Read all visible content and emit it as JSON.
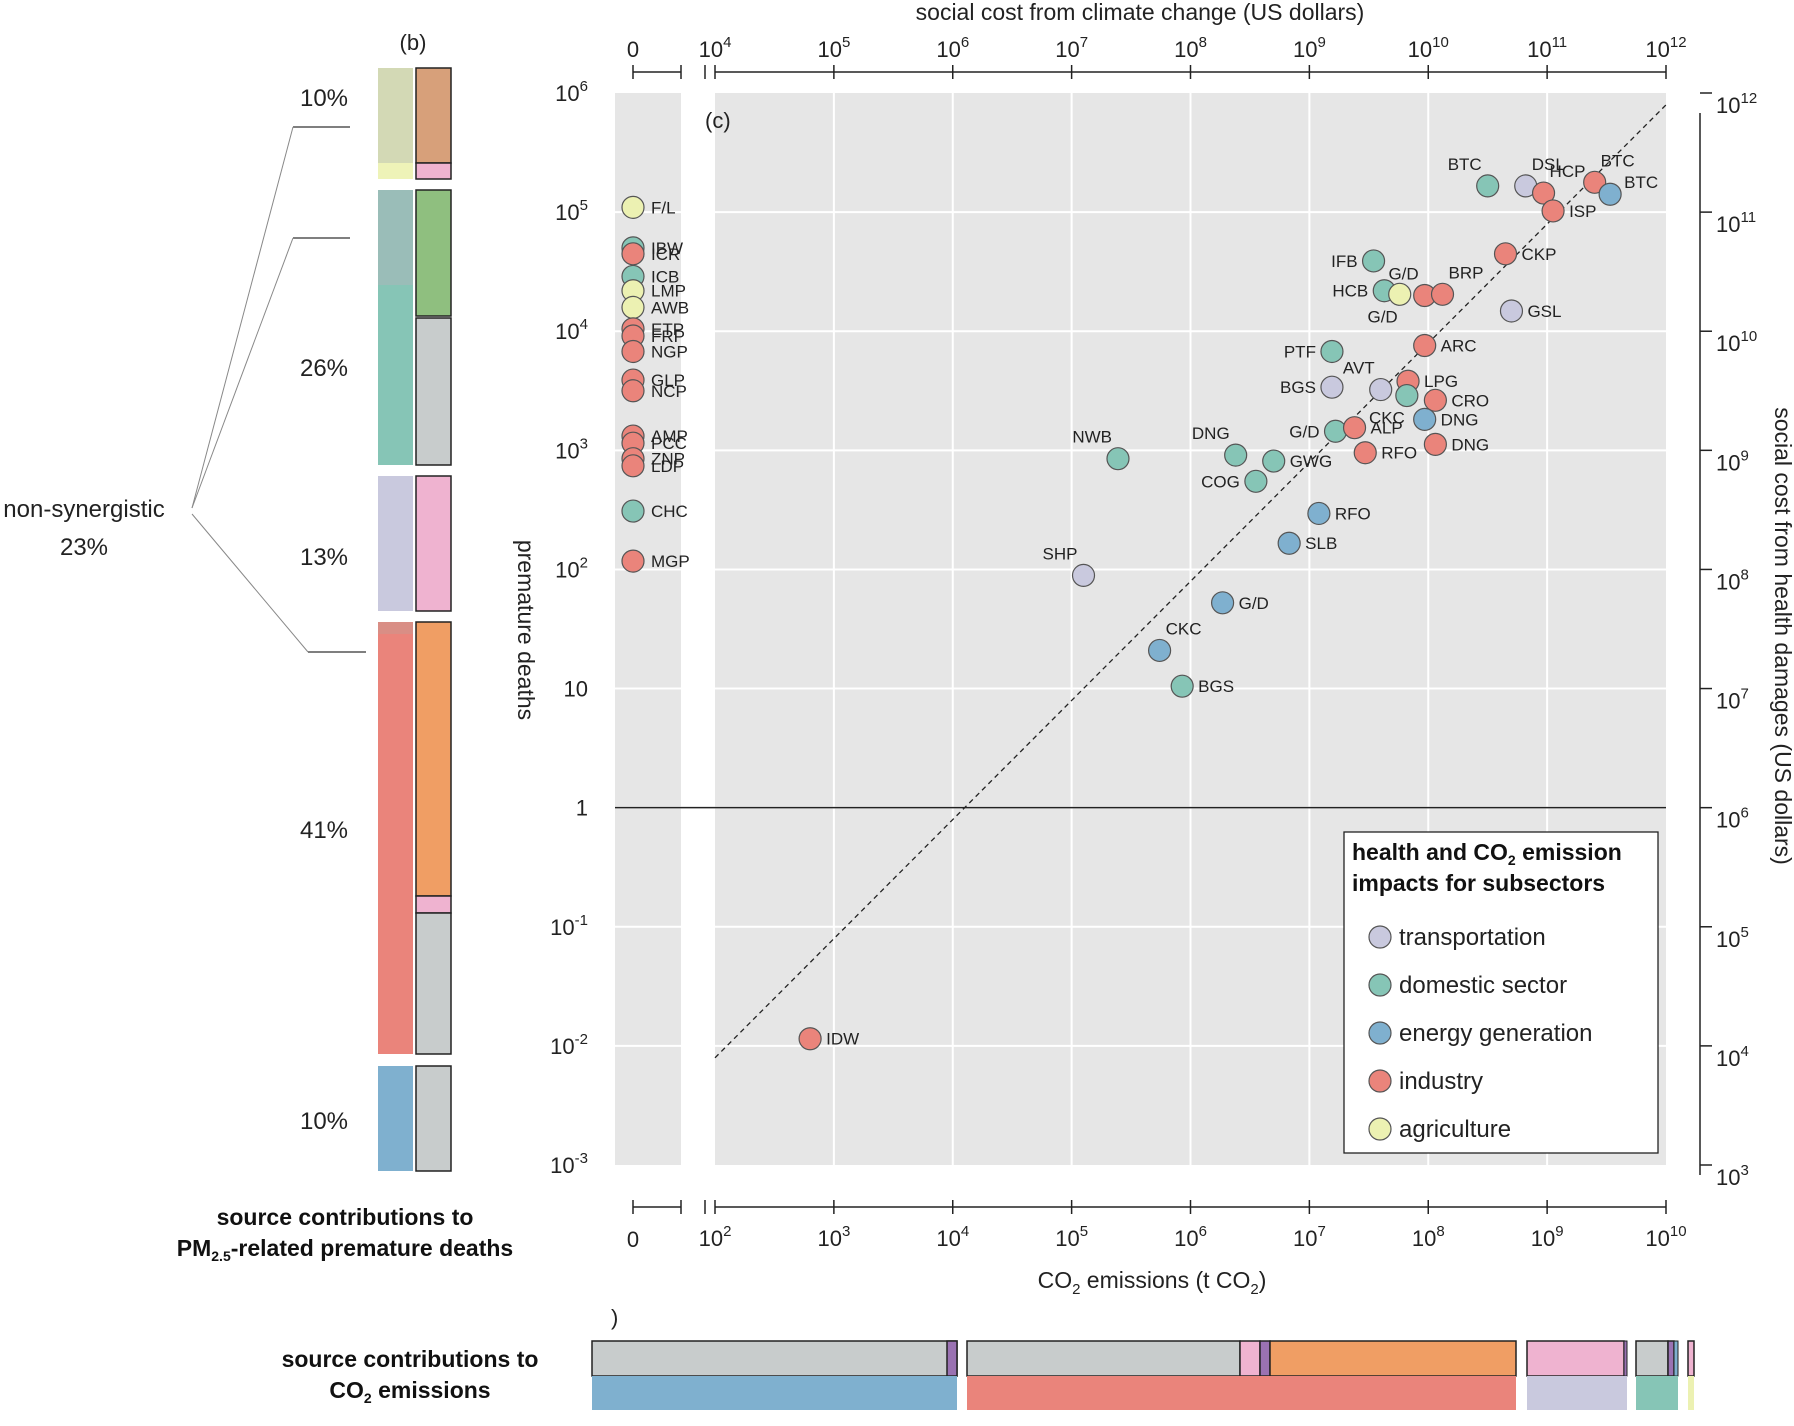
{
  "colors": {
    "transportation": "#c9c9de",
    "domestic": "#86c5b6",
    "energy": "#7fb0cf",
    "industry": "#ea847b",
    "agriculture": "#ecf1b2",
    "grey": "#c8cccc",
    "pink": "#efb3d0",
    "orange": "#f09e64",
    "green": "#8fbf7f",
    "tan": "#d7a07a",
    "purple": "#9a72b2",
    "panel": "#e6e6e6"
  },
  "panel_b": {
    "label": "(b)",
    "caption": {
      "line1": "source contributions to",
      "line2_pre": "PM",
      "line2_sub": "2.5",
      "line2_post": "-related premature deaths"
    },
    "percents": [
      "10%",
      "26%",
      "13%",
      "41%",
      "10%"
    ],
    "nonsyn_label": "non-synergistic",
    "nonsyn_pct": "23%"
  },
  "panel_d": {
    "caption": {
      "line1": "source contributions to",
      "line2_pre": "CO",
      "line2_sub": "2",
      "line2_post": " emissions"
    }
  },
  "chart_data": {
    "type": "scatter",
    "panel_label": "(c)",
    "xlabel_bottom": {
      "pre": "CO",
      "sub": "2",
      "post": " emissions (t CO",
      "sub2": "2",
      "end": ")"
    },
    "xlabel_top": "social cost from climate change (US dollars)",
    "ylabel_left": "premature deaths",
    "ylabel_right": "social cost from health damages (US dollars)",
    "x_range_log10": [
      2,
      10
    ],
    "x_top_range_log10": [
      4,
      12
    ],
    "y_range_log10": [
      -3,
      6
    ],
    "y_right_range_log10": [
      3,
      12
    ],
    "x_ticks": [
      {
        "b": "10",
        "e": "2"
      },
      {
        "b": "10",
        "e": "3"
      },
      {
        "b": "10",
        "e": "4"
      },
      {
        "b": "10",
        "e": "5"
      },
      {
        "b": "10",
        "e": "6"
      },
      {
        "b": "10",
        "e": "7"
      },
      {
        "b": "10",
        "e": "8"
      },
      {
        "b": "10",
        "e": "9"
      },
      {
        "b": "10",
        "e": "10"
      }
    ],
    "x_top_ticks": [
      {
        "b": "10",
        "e": "4"
      },
      {
        "b": "10",
        "e": "5"
      },
      {
        "b": "10",
        "e": "6"
      },
      {
        "b": "10",
        "e": "7"
      },
      {
        "b": "10",
        "e": "8"
      },
      {
        "b": "10",
        "e": "9"
      },
      {
        "b": "10",
        "e": "10"
      },
      {
        "b": "10",
        "e": "11"
      },
      {
        "b": "10",
        "e": "12"
      }
    ],
    "y_ticks": [
      {
        "b": "10",
        "e": "-3"
      },
      {
        "b": "10",
        "e": "-2"
      },
      {
        "b": "10",
        "e": "-1"
      },
      {
        "b": "1",
        "e": ""
      },
      {
        "b": "10",
        "e": ""
      },
      {
        "b": "10",
        "e": "2"
      },
      {
        "b": "10",
        "e": "3"
      },
      {
        "b": "10",
        "e": "4"
      },
      {
        "b": "10",
        "e": "5"
      },
      {
        "b": "10",
        "e": "6"
      }
    ],
    "y_right_ticks": [
      {
        "b": "10",
        "e": "3"
      },
      {
        "b": "10",
        "e": "4"
      },
      {
        "b": "10",
        "e": "5"
      },
      {
        "b": "10",
        "e": "6"
      },
      {
        "b": "10",
        "e": "7"
      },
      {
        "b": "10",
        "e": "8"
      },
      {
        "b": "10",
        "e": "9"
      },
      {
        "b": "10",
        "e": "10"
      },
      {
        "b": "10",
        "e": "11"
      },
      {
        "b": "10",
        "e": "12"
      }
    ],
    "zero_label": "0",
    "legend": {
      "title_line1_pre": "health and CO",
      "title_line1_sub": "2",
      "title_line1_post": " emission",
      "title_line2": "impacts for subsectors",
      "entries": [
        {
          "name": "transportation",
          "sector": "transportation"
        },
        {
          "name": "domestic sector",
          "sector": "domestic"
        },
        {
          "name": "energy generation",
          "sector": "energy"
        },
        {
          "name": "industry",
          "sector": "industry"
        },
        {
          "name": "agriculture",
          "sector": "agriculture"
        }
      ]
    },
    "points": [
      {
        "label": "BTC",
        "sector": "domestic",
        "x": 8.5,
        "y": 5.22,
        "pos": "ul"
      },
      {
        "label": "DSL",
        "sector": "transportation",
        "x": 8.82,
        "y": 5.22,
        "pos": "ur"
      },
      {
        "label": "HCP",
        "sector": "industry",
        "x": 8.97,
        "y": 5.16,
        "pos": "ur"
      },
      {
        "label": "BTC",
        "sector": "industry",
        "x": 9.4,
        "y": 5.25,
        "pos": "ur"
      },
      {
        "label": "BTC",
        "sector": "energy",
        "x": 9.53,
        "y": 5.15,
        "pos": "r2"
      },
      {
        "label": "ISP",
        "sector": "industry",
        "x": 9.05,
        "y": 5.01,
        "pos": "r"
      },
      {
        "label": "CKP",
        "sector": "industry",
        "x": 8.65,
        "y": 4.65,
        "pos": "r"
      },
      {
        "label": "IFB",
        "sector": "domestic",
        "x": 7.54,
        "y": 4.59,
        "pos": "l"
      },
      {
        "label": "G/D",
        "sector": "industry",
        "x": 7.97,
        "y": 4.3,
        "pos": "ul"
      },
      {
        "label": "BRP",
        "sector": "industry",
        "x": 8.12,
        "y": 4.31,
        "pos": "ur"
      },
      {
        "label": "HCB",
        "sector": "domestic",
        "x": 7.63,
        "y": 4.34,
        "pos": "l"
      },
      {
        "label": "G/D",
        "sector": "agriculture",
        "x": 7.76,
        "y": 4.31,
        "pos": "bl"
      },
      {
        "label": "GSL",
        "sector": "transportation",
        "x": 8.7,
        "y": 4.17,
        "pos": "r"
      },
      {
        "label": "ARC",
        "sector": "industry",
        "x": 7.97,
        "y": 3.88,
        "pos": "r"
      },
      {
        "label": "PTF",
        "sector": "domestic",
        "x": 7.19,
        "y": 3.83,
        "pos": "l"
      },
      {
        "label": "BGS",
        "sector": "transportation",
        "x": 7.19,
        "y": 3.53,
        "pos": "l"
      },
      {
        "label": "AVT",
        "sector": "transportation",
        "x": 7.6,
        "y": 3.51,
        "pos": "ul"
      },
      {
        "label": "LPG",
        "sector": "industry",
        "x": 7.83,
        "y": 3.58,
        "pos": "r"
      },
      {
        "label": "CKC",
        "sector": "domestic",
        "x": 7.82,
        "y": 3.46,
        "pos": "bl"
      },
      {
        "label": "CRO",
        "sector": "industry",
        "x": 8.06,
        "y": 3.42,
        "pos": "r"
      },
      {
        "label": "DNG",
        "sector": "energy",
        "x": 7.97,
        "y": 3.26,
        "pos": "r"
      },
      {
        "label": "G/D",
        "sector": "domestic",
        "x": 7.22,
        "y": 3.16,
        "pos": "l"
      },
      {
        "label": "ALP",
        "sector": "industry",
        "x": 7.38,
        "y": 3.19,
        "pos": "r"
      },
      {
        "label": "RFO",
        "sector": "industry",
        "x": 7.47,
        "y": 2.98,
        "pos": "r"
      },
      {
        "label": "DNG",
        "sector": "industry",
        "x": 8.06,
        "y": 3.05,
        "pos": "r"
      },
      {
        "label": "NWB",
        "sector": "domestic",
        "x": 5.39,
        "y": 2.93,
        "pos": "ul"
      },
      {
        "label": "DNG",
        "sector": "domestic",
        "x": 6.38,
        "y": 2.96,
        "pos": "ul"
      },
      {
        "label": "GWG",
        "sector": "domestic",
        "x": 6.7,
        "y": 2.91,
        "pos": "r"
      },
      {
        "label": "COG",
        "sector": "domestic",
        "x": 6.55,
        "y": 2.74,
        "pos": "l"
      },
      {
        "label": "RFO",
        "sector": "energy",
        "x": 7.08,
        "y": 2.47,
        "pos": "r"
      },
      {
        "label": "SLB",
        "sector": "energy",
        "x": 6.83,
        "y": 2.22,
        "pos": "r"
      },
      {
        "label": "SHP",
        "sector": "transportation",
        "x": 5.1,
        "y": 1.95,
        "pos": "ul"
      },
      {
        "label": "G/D",
        "sector": "energy",
        "x": 6.27,
        "y": 1.72,
        "pos": "r"
      },
      {
        "label": "CKC",
        "sector": "energy",
        "x": 5.74,
        "y": 1.32,
        "pos": "ur"
      },
      {
        "label": "BGS",
        "sector": "domestic",
        "x": 5.93,
        "y": 1.02,
        "pos": "r"
      },
      {
        "label": "IDW",
        "sector": "industry",
        "x": 2.8,
        "y": -1.94,
        "pos": "r"
      }
    ],
    "zero_points": [
      {
        "label": "F/L",
        "sector": "agriculture",
        "y": 5.04
      },
      {
        "label": "IBW",
        "sector": "domestic",
        "y": 4.7
      },
      {
        "label": "ICR",
        "sector": "industry",
        "y": 4.65
      },
      {
        "label": "ICB",
        "sector": "domestic",
        "y": 4.46
      },
      {
        "label": "LMP",
        "sector": "agriculture",
        "y": 4.34
      },
      {
        "label": "AWB",
        "sector": "agriculture",
        "y": 4.2
      },
      {
        "label": "ETP",
        "sector": "industry",
        "y": 4.02
      },
      {
        "label": "FRP",
        "sector": "industry",
        "y": 3.96
      },
      {
        "label": "NGP",
        "sector": "industry",
        "y": 3.83
      },
      {
        "label": "GLP",
        "sector": "industry",
        "y": 3.59
      },
      {
        "label": "NCP",
        "sector": "industry",
        "y": 3.5
      },
      {
        "label": "AMP",
        "sector": "industry",
        "y": 3.12
      },
      {
        "label": "PCC",
        "sector": "industry",
        "y": 3.06
      },
      {
        "label": "ZNP",
        "sector": "industry",
        "y": 2.93
      },
      {
        "label": "LDP",
        "sector": "industry",
        "y": 2.87
      },
      {
        "label": "CHC",
        "sector": "domestic",
        "y": 2.49
      },
      {
        "label": "MGP",
        "sector": "industry",
        "y": 2.07
      }
    ]
  }
}
